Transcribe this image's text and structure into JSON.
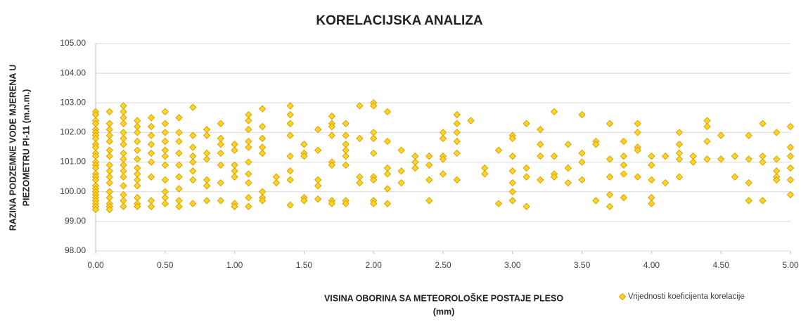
{
  "chart_data": {
    "type": "scatter",
    "title": "KORELACIJSKA ANALIZA",
    "xlabel": [
      "VISINA OBORINA SA METEOROLOŠKE POSTAJE PLESO",
      "(mm)"
    ],
    "ylabel": [
      "RAZINA PODZEMNE VODE MJERENA U",
      "PIEZOMETRU PI-11 (m.n.m.)"
    ],
    "xlim": [
      0,
      5
    ],
    "ylim": [
      98,
      105
    ],
    "xticks": [
      {
        "value": 0,
        "label": "0.00"
      },
      {
        "value": 0.5,
        "label": "0.50"
      },
      {
        "value": 1,
        "label": "1.00"
      },
      {
        "value": 1.5,
        "label": "1.50"
      },
      {
        "value": 2,
        "label": "2.00"
      },
      {
        "value": 2.5,
        "label": "2.50"
      },
      {
        "value": 3,
        "label": "3.00"
      },
      {
        "value": 3.5,
        "label": "3.50"
      },
      {
        "value": 4,
        "label": "4.00"
      },
      {
        "value": 4.5,
        "label": "4.50"
      },
      {
        "value": 5,
        "label": "5.00"
      }
    ],
    "yticks": [
      {
        "value": 98,
        "label": "98.00"
      },
      {
        "value": 99,
        "label": "99.00"
      },
      {
        "value": 100,
        "label": "100.00"
      },
      {
        "value": 101,
        "label": "101.00"
      },
      {
        "value": 102,
        "label": "102.00"
      },
      {
        "value": 103,
        "label": "103.00"
      },
      {
        "value": 104,
        "label": "104.00"
      },
      {
        "value": 105,
        "label": "105.00"
      }
    ],
    "grid": true,
    "legend": "bottom-right",
    "series": [
      {
        "name": "Vrijednosti koeficijenta korelacije",
        "color": "#ffd42a",
        "edge": "#d9a400",
        "x": [
          0,
          0,
          0,
          0,
          0,
          0,
          0,
          0,
          0,
          0,
          0,
          0,
          0,
          0,
          0,
          0,
          0,
          0,
          0,
          0,
          0,
          0,
          0,
          0,
          0,
          0,
          0,
          0.1,
          0.1,
          0.1,
          0.1,
          0.1,
          0.1,
          0.1,
          0.1,
          0.1,
          0.1,
          0.1,
          0.1,
          0.1,
          0.1,
          0.1,
          0.1,
          0.2,
          0.2,
          0.2,
          0.2,
          0.2,
          0.2,
          0.2,
          0.2,
          0.2,
          0.2,
          0.2,
          0.2,
          0.2,
          0.2,
          0.2,
          0.2,
          0.3,
          0.3,
          0.3,
          0.3,
          0.3,
          0.3,
          0.3,
          0.3,
          0.3,
          0.3,
          0.3,
          0.3,
          0.3,
          0.4,
          0.4,
          0.4,
          0.4,
          0.4,
          0.4,
          0.4,
          0.4,
          0.4,
          0.5,
          0.5,
          0.5,
          0.5,
          0.5,
          0.5,
          0.5,
          0.5,
          0.5,
          0.5,
          0.5,
          0.6,
          0.6,
          0.6,
          0.6,
          0.6,
          0.6,
          0.6,
          0.6,
          0.6,
          0.7,
          0.7,
          0.7,
          0.7,
          0.7,
          0.7,
          0.7,
          0.7,
          0.8,
          0.8,
          0.8,
          0.8,
          0.8,
          0.8,
          0.8,
          0.9,
          0.9,
          0.9,
          0.9,
          0.9,
          0.9,
          0.9,
          1.0,
          1.0,
          1.0,
          1.0,
          1.0,
          1.0,
          1.0,
          1.1,
          1.1,
          1.1,
          1.1,
          1.1,
          1.1,
          1.1,
          1.1,
          1.1,
          1.1,
          1.2,
          1.2,
          1.2,
          1.2,
          1.2,
          1.2,
          1.2,
          1.2,
          1.3,
          1.3,
          1.4,
          1.4,
          1.4,
          1.4,
          1.4,
          1.4,
          1.4,
          1.4,
          1.5,
          1.5,
          1.5,
          1.5,
          1.5,
          1.6,
          1.6,
          1.6,
          1.6,
          1.6,
          1.7,
          1.7,
          1.7,
          1.7,
          1.7,
          1.7,
          1.7,
          1.7,
          1.8,
          1.8,
          1.8,
          1.8,
          1.8,
          1.8,
          1.8,
          1.8,
          1.9,
          1.9,
          1.9,
          1.9,
          2.0,
          2.0,
          2.0,
          2.0,
          2.0,
          2.0,
          2.0,
          2.0,
          2.0,
          2.1,
          2.1,
          2.1,
          2.1,
          2.1,
          2.1,
          2.2,
          2.2,
          2.2,
          2.3,
          2.3,
          2.3,
          2.4,
          2.4,
          2.4,
          2.4,
          2.5,
          2.5,
          2.5,
          2.5,
          2.5,
          2.6,
          2.6,
          2.6,
          2.6,
          2.6,
          2.6,
          2.7,
          2.8,
          2.8,
          2.9,
          2.9,
          3.0,
          3.0,
          3.0,
          3.0,
          3.0,
          3.0,
          3.0,
          3.1,
          3.1,
          3.1,
          3.1,
          3.2,
          3.2,
          3.2,
          3.2,
          3.3,
          3.3,
          3.3,
          3.3,
          3.4,
          3.4,
          3.4,
          3.5,
          3.5,
          3.5,
          3.5,
          3.6,
          3.6,
          3.6,
          3.7,
          3.7,
          3.7,
          3.7,
          3.7,
          3.8,
          3.8,
          3.8,
          3.8,
          3.8,
          3.9,
          3.9,
          3.9,
          3.9,
          3.9,
          4.0,
          4.0,
          4.0,
          4.0,
          4.0,
          4.1,
          4.1,
          4.2,
          4.2,
          4.2,
          4.2,
          4.2,
          4.3,
          4.3,
          4.4,
          4.4,
          4.4,
          4.4,
          4.5,
          4.5,
          4.6,
          4.6,
          4.7,
          4.7,
          4.7,
          4.7,
          4.8,
          4.8,
          4.8,
          4.8,
          4.9,
          4.9,
          4.9,
          4.9,
          4.9,
          5.0,
          5.0,
          5.0,
          5.0,
          5.0,
          5.0
        ],
        "values": [
          102.7,
          102.6,
          102.4,
          102.3,
          102.1,
          102.0,
          101.9,
          101.8,
          101.6,
          101.5,
          101.3,
          101.2,
          101.0,
          100.9,
          100.8,
          100.6,
          100.5,
          100.4,
          100.2,
          100.1,
          100.0,
          99.9,
          99.8,
          99.7,
          99.6,
          99.5,
          99.4,
          102.7,
          102.3,
          102.1,
          101.9,
          101.7,
          101.4,
          101.2,
          100.9,
          100.7,
          100.5,
          100.3,
          100.0,
          99.8,
          99.6,
          99.5,
          99.4,
          102.9,
          102.7,
          102.5,
          102.3,
          102.0,
          101.8,
          101.6,
          101.3,
          101.1,
          100.9,
          100.7,
          100.5,
          100.2,
          99.9,
          99.7,
          99.5,
          102.4,
          102.2,
          102.0,
          101.7,
          101.4,
          101.1,
          100.8,
          100.6,
          100.4,
          100.2,
          99.8,
          99.6,
          99.5,
          102.5,
          102.2,
          101.9,
          101.6,
          101.3,
          101.0,
          100.5,
          99.7,
          99.5,
          102.7,
          102.3,
          102.0,
          101.7,
          101.4,
          101.2,
          100.9,
          100.4,
          100.0,
          99.8,
          99.6,
          102.5,
          102.0,
          101.7,
          101.3,
          100.9,
          100.5,
          100.1,
          99.7,
          99.5,
          102.85,
          101.9,
          101.5,
          101.2,
          101.0,
          100.7,
          100.4,
          99.6,
          102.1,
          101.9,
          101.3,
          101.1,
          100.4,
          100.2,
          99.7,
          102.3,
          101.8,
          101.6,
          101.3,
          100.9,
          100.3,
          99.7,
          101.6,
          101.4,
          100.9,
          100.7,
          100.5,
          99.6,
          99.5,
          102.6,
          102.4,
          102.1,
          101.7,
          101.5,
          101.0,
          100.6,
          100.3,
          99.8,
          99.5,
          102.8,
          102.2,
          101.8,
          101.5,
          101.3,
          100.0,
          99.8,
          99.7,
          100.5,
          100.3,
          102.9,
          102.6,
          102.3,
          101.9,
          101.2,
          100.7,
          100.4,
          99.55,
          101.6,
          101.3,
          101.2,
          99.8,
          99.7,
          102.1,
          101.4,
          100.4,
          100.2,
          99.75,
          102.55,
          102.3,
          102.2,
          101.9,
          101.0,
          100.9,
          99.7,
          99.6,
          102.3,
          101.9,
          101.6,
          101.4,
          101.2,
          100.9,
          99.7,
          99.6,
          102.9,
          101.8,
          100.5,
          100.3,
          103.0,
          102.9,
          102.0,
          101.8,
          101.3,
          100.5,
          100.4,
          99.7,
          99.6,
          102.7,
          101.7,
          100.8,
          100.6,
          100.1,
          99.6,
          101.4,
          100.7,
          100.3,
          101.2,
          101.0,
          100.8,
          101.2,
          100.9,
          100.4,
          99.7,
          102.0,
          101.8,
          101.2,
          101.1,
          100.6,
          102.6,
          102.3,
          102.0,
          101.7,
          101.3,
          100.4,
          102.4,
          100.8,
          100.6,
          101.4,
          99.6,
          101.9,
          101.8,
          101.2,
          100.7,
          100.3,
          100.0,
          99.7,
          102.3,
          100.8,
          100.5,
          99.5,
          102.1,
          101.6,
          101.2,
          100.4,
          102.7,
          101.2,
          100.6,
          100.5,
          101.6,
          100.8,
          100.3,
          102.6,
          101.3,
          101.0,
          100.4,
          101.7,
          101.6,
          99.7,
          102.3,
          101.1,
          100.5,
          99.9,
          99.5,
          101.7,
          101.2,
          100.9,
          100.6,
          99.8,
          102.3,
          102.0,
          101.5,
          101.4,
          100.5,
          101.2,
          100.9,
          100.4,
          99.8,
          99.6,
          101.2,
          100.3,
          102.0,
          101.6,
          101.3,
          101.1,
          100.5,
          101.2,
          101.0,
          102.4,
          102.2,
          101.7,
          101.1,
          101.9,
          101.1,
          101.2,
          100.5,
          101.9,
          101.1,
          100.3,
          99.7,
          102.3,
          101.2,
          101.0,
          99.7,
          102.0,
          101.1,
          100.7,
          100.5,
          100.4,
          102.2,
          101.5,
          101.2,
          100.8,
          100.4,
          99.9
        ]
      }
    ]
  }
}
